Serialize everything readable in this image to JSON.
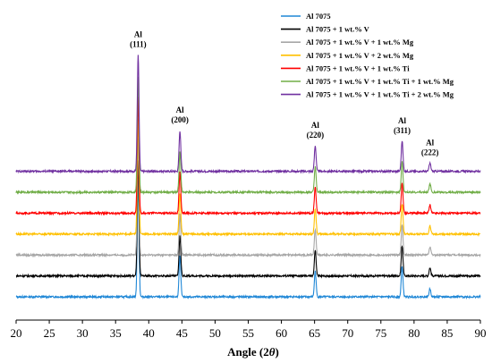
{
  "chart_data": {
    "type": "line",
    "xlabel_main": "Angle (2",
    "xlabel_theta": "θ",
    "xlabel_close": ")",
    "xlim": [
      20,
      90
    ],
    "x_ticks": [
      20,
      25,
      30,
      35,
      40,
      45,
      50,
      55,
      60,
      65,
      70,
      75,
      80,
      85,
      90
    ],
    "y_ticks_shown": false,
    "legend_position": "top-right",
    "peaks": [
      {
        "element": "Al",
        "plane": "(111)",
        "two_theta": 38.4,
        "height": 100
      },
      {
        "element": "Al",
        "plane": "(200)",
        "two_theta": 44.7,
        "height": 35
      },
      {
        "element": "Al",
        "plane": "(220)",
        "two_theta": 65.1,
        "height": 22
      },
      {
        "element": "Al",
        "plane": "(311)",
        "two_theta": 78.2,
        "height": 26
      },
      {
        "element": "Al",
        "plane": "(222)",
        "two_theta": 82.4,
        "height": 7
      }
    ],
    "series": [
      {
        "name": "Al 7075",
        "color": "#1f87d6",
        "offset": 0
      },
      {
        "name": "Al 7075 + 1 wt.% V",
        "color": "#000000",
        "offset": 1
      },
      {
        "name": "Al 7075 + 1 wt.% V + 1 wt.% Mg",
        "color": "#a6a6a6",
        "offset": 2
      },
      {
        "name": "Al 7075 + 1 wt.% V + 2 wt.% Mg",
        "color": "#ffc000",
        "offset": 3
      },
      {
        "name": "Al 7075 + 1 wt.% V + 1 wt.% Ti",
        "color": "#ff0000",
        "offset": 4
      },
      {
        "name": "Al 7075 + 1 wt.% V + 1 wt.% Ti + 1 wt.% Mg",
        "color": "#70ad47",
        "offset": 5
      },
      {
        "name": "Al 7075 + 1 wt.% V + 1 wt.% Ti + 2 wt.% Mg",
        "color": "#7030a0",
        "offset": 6
      }
    ]
  }
}
